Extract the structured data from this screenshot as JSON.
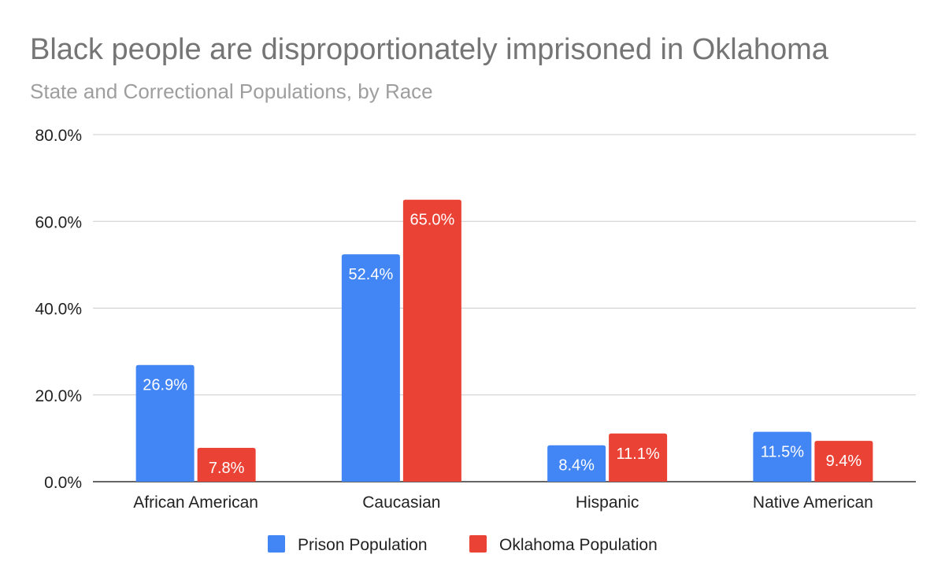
{
  "chart_data": {
    "type": "bar",
    "title": "Black people are disproportionately imprisoned in Oklahoma",
    "subtitle": "State and Correctional Populations, by Race",
    "categories": [
      "African American",
      "Caucasian",
      "Hispanic",
      "Native American"
    ],
    "series": [
      {
        "name": "Prison Population",
        "color": "#4285f4",
        "values": [
          26.9,
          52.4,
          8.4,
          11.5
        ],
        "labels": [
          "26.9%",
          "52.4%",
          "8.4%",
          "11.5%"
        ]
      },
      {
        "name": "Oklahoma Population",
        "color": "#ea4335",
        "values": [
          7.8,
          65.0,
          11.1,
          9.4
        ],
        "labels": [
          "7.8%",
          "65.0%",
          "11.1%",
          "9.4%"
        ]
      }
    ],
    "ylim": [
      0,
      80
    ],
    "yticks": [
      0,
      20,
      40,
      60,
      80
    ],
    "ytick_labels": [
      "0.0%",
      "20.0%",
      "40.0%",
      "60.0%",
      "80.0%"
    ],
    "xlabel": "",
    "ylabel": "",
    "grid": true,
    "legend_position": "bottom",
    "gridline_color": "#cccccc",
    "axis_color": "#333333"
  }
}
